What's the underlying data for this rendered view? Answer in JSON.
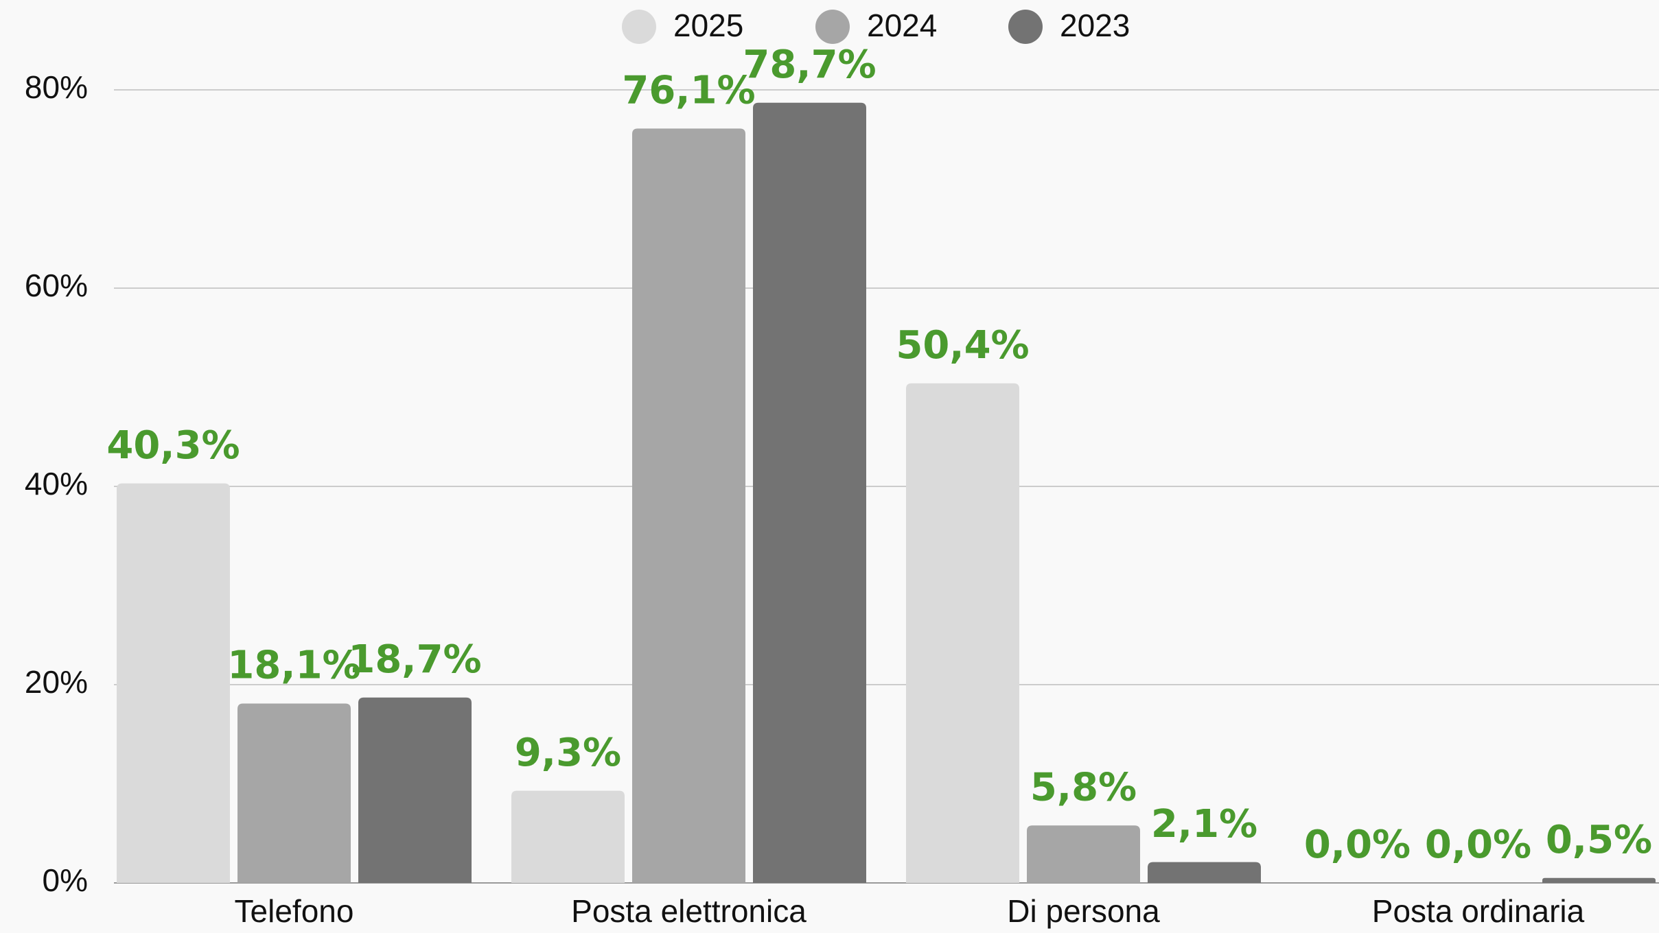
{
  "chart_data": {
    "type": "bar",
    "categories": [
      "Telefono",
      "Posta elettronica",
      "Di persona",
      "Posta ordinaria"
    ],
    "series": [
      {
        "name": "2025",
        "color": "#dadada",
        "values": [
          40.3,
          9.3,
          50.4,
          0.0
        ],
        "value_labels": [
          "40,3%",
          "9,3%",
          "50,4%",
          "0,0%"
        ]
      },
      {
        "name": "2024",
        "color": "#a6a6a6",
        "values": [
          18.1,
          76.1,
          5.8,
          0.0
        ],
        "value_labels": [
          "18,1%",
          "76,1%",
          "5,8%",
          "0,0%"
        ]
      },
      {
        "name": "2023",
        "color": "#737373",
        "values": [
          18.7,
          78.7,
          2.1,
          0.5
        ],
        "value_labels": [
          "18,7%",
          "78,7%",
          "2,1%",
          "0,5%"
        ]
      }
    ],
    "ylim": [
      0,
      80
    ],
    "yticks": [
      {
        "value": 0,
        "label": "0%"
      },
      {
        "value": 20,
        "label": "20%"
      },
      {
        "value": 40,
        "label": "40%"
      },
      {
        "value": 60,
        "label": "60%"
      },
      {
        "value": 80,
        "label": "80%"
      }
    ],
    "grid": true,
    "legend": "top"
  }
}
